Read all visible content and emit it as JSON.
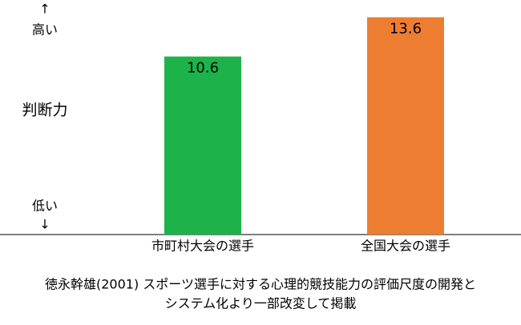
{
  "chart_data": {
    "type": "bar",
    "y_label": "判断力",
    "y_top_arrow": "↑",
    "y_top_label": "高い",
    "y_bottom_label": "低い",
    "y_bottom_arrow": "↓",
    "categories": [
      "市町村大会の選手",
      "全国大会の選手"
    ],
    "values": [
      10.6,
      13.6
    ],
    "colors": [
      "#1db34a",
      "#ed7d31"
    ],
    "ylim": [
      -3,
      14
    ],
    "note": [
      "徳永幹雄(2001) スポーツ選手に対する心理的競技能力の評価尺度の開発と",
      "システム化より一部改変して掲載"
    ]
  }
}
